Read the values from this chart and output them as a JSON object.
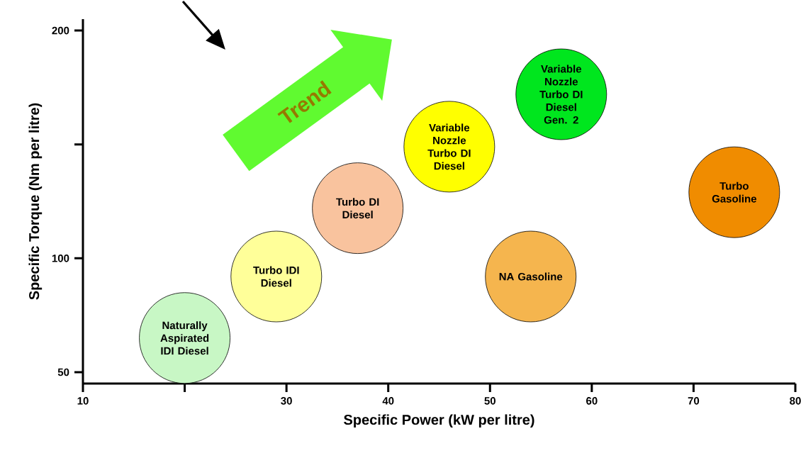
{
  "chart_data": {
    "type": "scatter",
    "xlabel": "Specific Power (kW per litre)",
    "ylabel": "Specific Torque (Nm per litre)",
    "x": [
      20,
      29,
      37,
      46,
      57,
      54,
      74
    ],
    "values": [
      65,
      92,
      122,
      149,
      172,
      92,
      129
    ],
    "colors": [
      "#c8f7c5",
      "#ffff99",
      "#f9c39e",
      "#ffff00",
      "#00e61e",
      "#f5b54e",
      "#f08c00"
    ],
    "grid": false,
    "xlim": [
      10,
      80
    ],
    "ylim": [
      45,
      205
    ],
    "xticks": [
      10,
      {
        "value": 20,
        "label": null
      },
      30,
      40,
      50,
      60,
      70,
      80
    ],
    "yticks": [
      50,
      100,
      {
        "value": 150,
        "label": null
      },
      200
    ],
    "annotations": [
      {
        "text": "Naturally Aspirated IDI Diesel",
        "x": 20,
        "y": 65
      },
      {
        "text": "Turbo IDI Diesel",
        "x": 29,
        "y": 92
      },
      {
        "text": "Turbo DI Diesel",
        "x": 37,
        "y": 122
      },
      {
        "text": "Variable Nozzle Turbo DI Diesel",
        "x": 46,
        "y": 149
      },
      {
        "text": "Variable Nozzle Turbo DI Diesel Gen. 2",
        "x": 57,
        "y": 172
      },
      {
        "text": "NA Gasoline",
        "x": 54,
        "y": 92
      },
      {
        "text": "Turbo Gasoline",
        "x": 74,
        "y": 129
      },
      "Trend"
    ]
  }
}
